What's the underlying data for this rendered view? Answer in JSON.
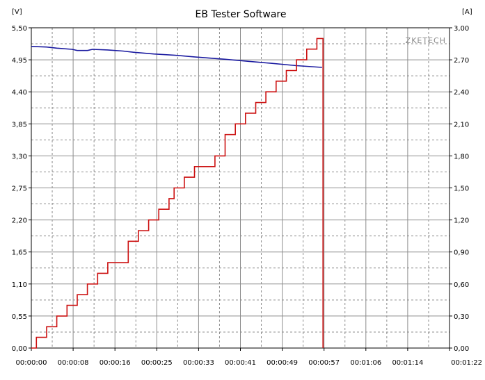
{
  "chart_data": {
    "type": "line",
    "title": "EB Tester Software",
    "watermark": "ZKETECH",
    "left_axis": {
      "unit": "[V]",
      "range": [
        0,
        5.5
      ],
      "ticks": [
        "0,00",
        "0,55",
        "1,10",
        "1,65",
        "2,20",
        "2,75",
        "3,30",
        "3,85",
        "4,40",
        "4,95",
        "5,50"
      ]
    },
    "right_axis": {
      "unit": "[A]",
      "range": [
        0,
        3.0
      ],
      "ticks": [
        "0,00",
        "0,30",
        "0,60",
        "0,90",
        "1,20",
        "1,50",
        "1,80",
        "2,10",
        "2,40",
        "2,70",
        "3,00"
      ]
    },
    "x_axis": {
      "range_seconds": [
        0,
        82
      ],
      "ticks": [
        "00:00:00",
        "00:00:08",
        "00:00:16",
        "00:00:25",
        "00:00:33",
        "00:00:41",
        "00:00:49",
        "00:00:57",
        "00:01:06",
        "00:01:14",
        "00:01:22"
      ]
    },
    "grid": "dashed",
    "series": [
      {
        "axis": "left",
        "color": "#1a1aa0",
        "x": [
          0,
          3,
          5,
          8,
          9,
          11,
          12,
          15,
          18,
          20,
          24,
          28,
          32,
          38,
          43,
          47,
          52,
          57
        ],
        "y": [
          5.18,
          5.17,
          5.15,
          5.13,
          5.11,
          5.11,
          5.13,
          5.12,
          5.1,
          5.08,
          5.05,
          5.03,
          5.0,
          4.96,
          4.92,
          4.89,
          4.85,
          4.82
        ]
      },
      {
        "axis": "right",
        "color": "#cc1111",
        "step": true,
        "x": [
          0,
          1,
          3,
          5,
          7,
          9,
          11,
          13,
          15,
          19,
          21,
          23,
          25,
          27,
          28,
          30,
          32,
          36,
          38,
          40,
          42,
          44,
          46,
          48,
          50,
          52,
          54,
          56,
          57,
          57.2
        ],
        "y": [
          0.0,
          0.1,
          0.2,
          0.3,
          0.4,
          0.5,
          0.6,
          0.7,
          0.8,
          1.0,
          1.1,
          1.2,
          1.3,
          1.4,
          1.5,
          1.6,
          1.7,
          1.8,
          2.0,
          2.1,
          2.2,
          2.3,
          2.4,
          2.5,
          2.6,
          2.7,
          2.8,
          2.9,
          2.9,
          0.0
        ]
      }
    ]
  }
}
